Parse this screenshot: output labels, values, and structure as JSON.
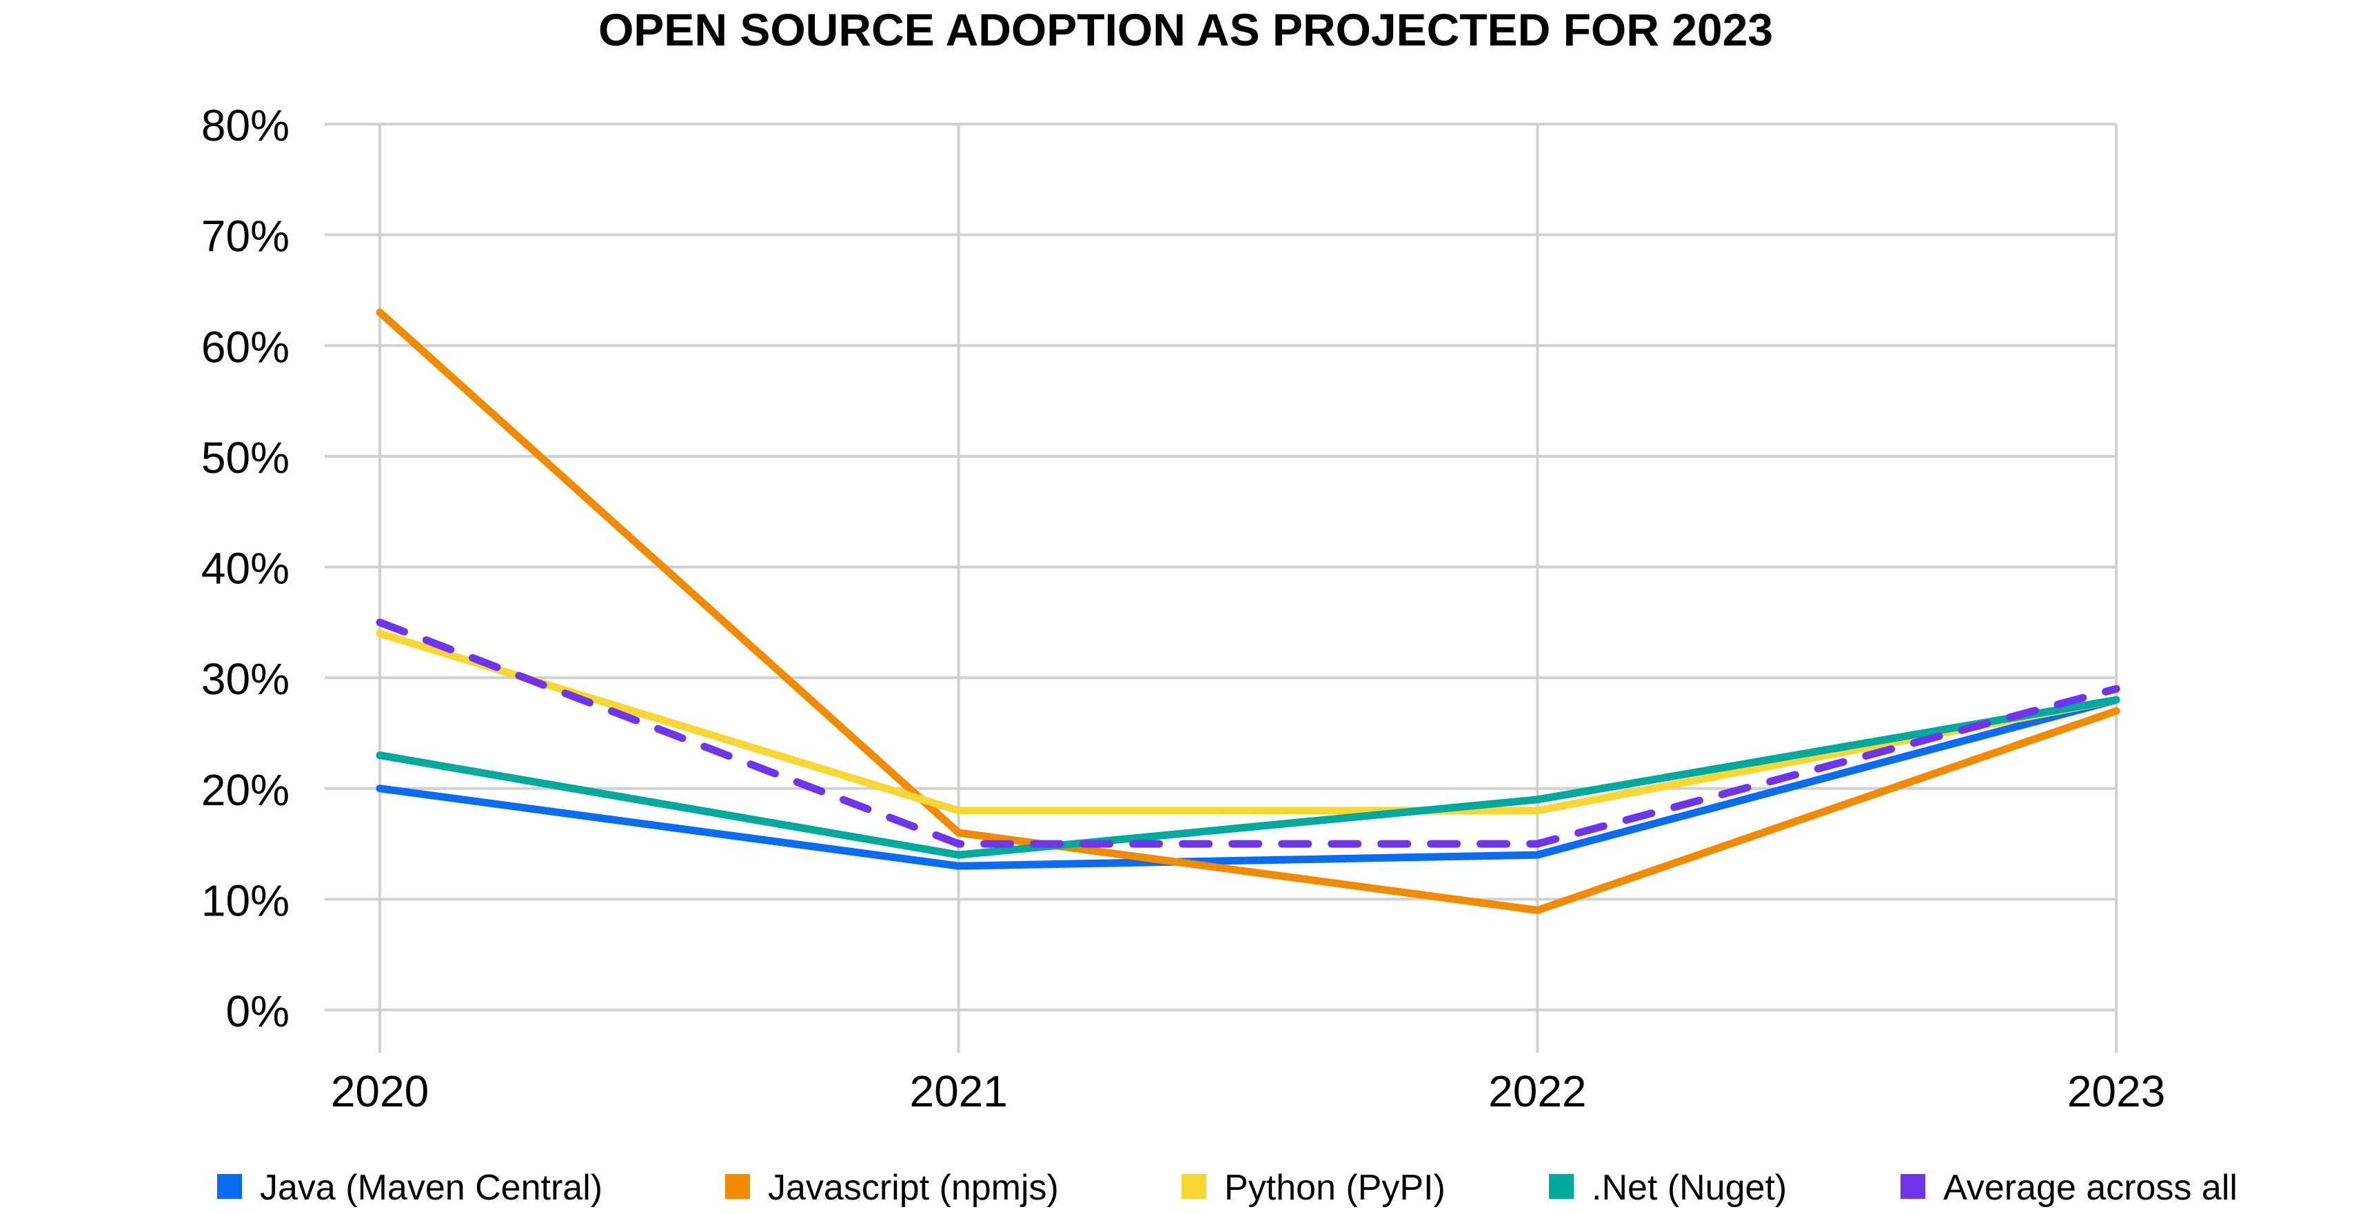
{
  "chart_data": {
    "type": "line",
    "title": "OPEN SOURCE ADOPTION AS PROJECTED FOR 2023",
    "xlabel": "",
    "ylabel": "",
    "categories": [
      "2020",
      "2021",
      "2022",
      "2023"
    ],
    "ylim": [
      0,
      80
    ],
    "yticks": [
      "0%",
      "10%",
      "20%",
      "30%",
      "40%",
      "50%",
      "60%",
      "70%",
      "80%"
    ],
    "grid": true,
    "legend_position": "bottom",
    "series": [
      {
        "name": "Java (Maven Central)",
        "color": "#0a6cf0",
        "dashed": false,
        "values": [
          20,
          13,
          14,
          28
        ]
      },
      {
        "name": "Javascript (npmjs)",
        "color": "#f28a00",
        "dashed": false,
        "values": [
          63,
          16,
          9,
          27
        ]
      },
      {
        "name": "Python (PyPI)",
        "color": "#f8d634",
        "dashed": false,
        "values": [
          34,
          18,
          18,
          28
        ]
      },
      {
        "name": ".Net (Nuget)",
        "color": "#00a99d",
        "dashed": false,
        "values": [
          23,
          14,
          19,
          28
        ]
      },
      {
        "name": "Average across all",
        "color": "#6e35ea",
        "dashed": true,
        "values": [
          35,
          15,
          15,
          29
        ]
      }
    ]
  }
}
